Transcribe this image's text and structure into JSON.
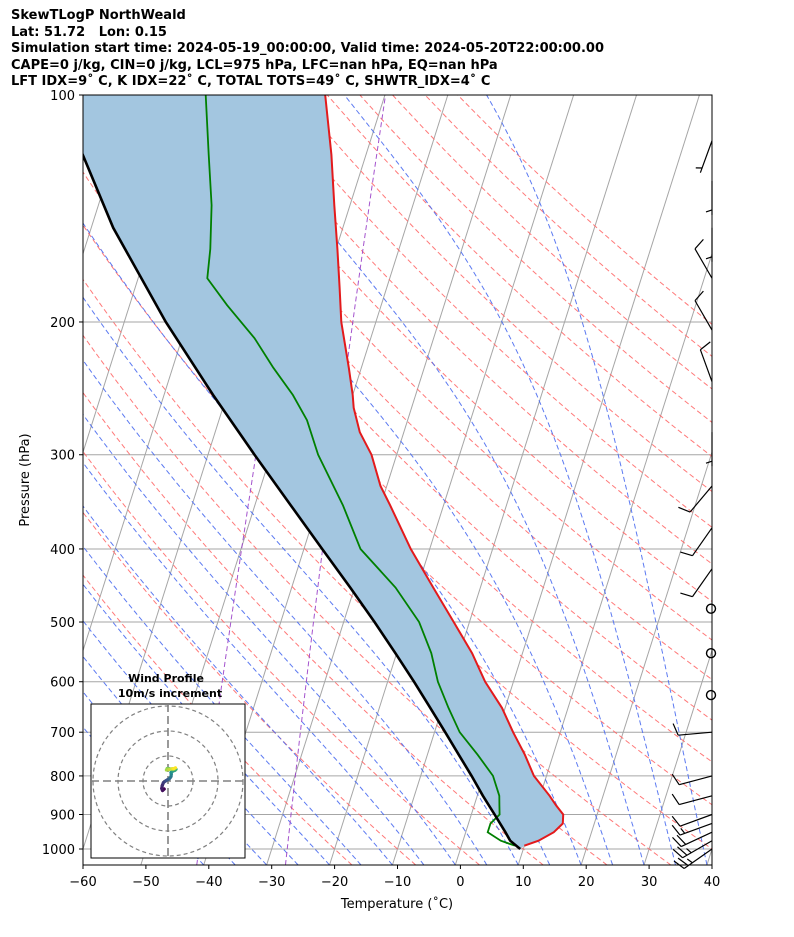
{
  "header": {
    "title": "SkewTLogP NorthWeald",
    "location": "Lat: 51.72   Lon: 0.15",
    "times": "Simulation start time: 2024-05-19_00:00:00, Valid time: 2024-05-20T22:00:00.00",
    "parcel": "CAPE=0 j/kg, CIN=0 j/kg, LCL=975 hPa, LFC=nan hPa, EQ=nan hPa",
    "indices": "LFT IDX=9˚ C, K IDX=22˚ C, TOTAL TOTS=49˚ C, SHWTR_IDX=4˚ C"
  },
  "chart_data": [
    {
      "type": "line",
      "title": "",
      "xlabel": "Temperature (˚C)",
      "ylabel": "Pressure (hPa)",
      "xlim": [
        -60,
        40
      ],
      "ylim": [
        1050,
        100
      ],
      "yscale": "log",
      "grid": true,
      "x_ticks": [
        "−60",
        "−50",
        "−40",
        "−30",
        "−20",
        "−10",
        "0",
        "10",
        "20",
        "30",
        "40"
      ],
      "x_tick_values": [
        -60,
        -50,
        -40,
        -30,
        -20,
        -10,
        0,
        10,
        20,
        30,
        40
      ],
      "y_ticks": [
        "1000",
        "900",
        "800",
        "700",
        "600",
        "500",
        "400",
        "300",
        "200",
        "100"
      ],
      "y_tick_values": [
        1000,
        900,
        800,
        700,
        600,
        500,
        400,
        300,
        200,
        100
      ],
      "skew_deg_per_decade": 38,
      "colors": {
        "temperature": "#e31a1c",
        "dewpoint": "#008000",
        "parcel": "#000000",
        "shade": "#a3c6e0",
        "dry_adiabat": "#ff6a6a",
        "moist_adiabat": "#4a6cf0",
        "mixing_ratio": "#9a40c8",
        "isotherm": "#a6a6a6"
      },
      "series": [
        {
          "id": "temperature",
          "p": [
            990,
            975,
            950,
            925,
            900,
            875,
            850,
            800,
            750,
            700,
            650,
            600,
            550,
            500,
            450,
            400,
            350,
            330,
            300,
            280,
            260,
            250,
            230,
            200,
            180,
            160,
            140,
            120,
            100
          ],
          "t": [
            10.0,
            12.0,
            14.0,
            15.0,
            14.6,
            13.0,
            11.5,
            8.0,
            5.5,
            2.5,
            -0.5,
            -4.5,
            -8.0,
            -12.5,
            -17.5,
            -23.0,
            -28.5,
            -31.0,
            -34.0,
            -37.0,
            -39.2,
            -40.0,
            -42.0,
            -45.5,
            -47.5,
            -49.8,
            -52.5,
            -55.5,
            -59.5
          ]
        },
        {
          "id": "dewpoint",
          "p": [
            990,
            975,
            950,
            925,
            900,
            875,
            850,
            800,
            750,
            700,
            650,
            600,
            550,
            500,
            450,
            400,
            350,
            300,
            270,
            250,
            230,
            210,
            190,
            175,
            160,
            140,
            120,
            100
          ],
          "t": [
            8.5,
            6.0,
            3.5,
            3.5,
            4.5,
            4.0,
            3.5,
            1.5,
            -2.0,
            -6.0,
            -9.0,
            -12.0,
            -14.5,
            -18.0,
            -23.5,
            -31.0,
            -36.0,
            -42.5,
            -46.0,
            -49.5,
            -54.0,
            -58.5,
            -64.5,
            -69.0,
            -70.0,
            -72.0,
            -75.0,
            -78.5
          ]
        },
        {
          "id": "parcel",
          "p": [
            1000,
            975,
            950,
            900,
            850,
            800,
            750,
            700,
            650,
            600,
            550,
            500,
            450,
            400,
            350,
            300,
            250,
            200,
            150,
            100
          ],
          "t": [
            9.5,
            7.5,
            6.3,
            3.7,
            0.9,
            -1.9,
            -5.0,
            -8.3,
            -11.9,
            -15.8,
            -20.2,
            -25.1,
            -30.7,
            -37.1,
            -44.3,
            -52.6,
            -62.2,
            -73.4,
            -86.5,
            -102.0
          ]
        }
      ],
      "wind_barbs": [
        {
          "p": 1000,
          "speed_kt": 25,
          "dir": 235
        },
        {
          "p": 975,
          "speed_kt": 25,
          "dir": 240
        },
        {
          "p": 950,
          "speed_kt": 20,
          "dir": 245
        },
        {
          "p": 925,
          "speed_kt": 15,
          "dir": 250
        },
        {
          "p": 900,
          "speed_kt": 10,
          "dir": 250
        },
        {
          "p": 850,
          "speed_kt": 10,
          "dir": 255
        },
        {
          "p": 800,
          "speed_kt": 10,
          "dir": 255
        },
        {
          "p": 700,
          "speed_kt": 10,
          "dir": 265
        },
        {
          "p": 625,
          "speed_kt": 0,
          "dir": 0
        },
        {
          "p": 550,
          "speed_kt": 0,
          "dir": 0
        },
        {
          "p": 480,
          "speed_kt": 0,
          "dir": 0
        },
        {
          "p": 425,
          "speed_kt": 10,
          "dir": 215
        },
        {
          "p": 375,
          "speed_kt": 10,
          "dir": 215
        },
        {
          "p": 330,
          "speed_kt": 10,
          "dir": 220
        },
        {
          "p": 280,
          "speed_kt": 5,
          "dir": 180
        },
        {
          "p": 240,
          "speed_kt": 10,
          "dir": 340
        },
        {
          "p": 205,
          "speed_kt": 10,
          "dir": 330
        },
        {
          "p": 175,
          "speed_kt": 10,
          "dir": 330
        },
        {
          "p": 150,
          "speed_kt": 5,
          "dir": 180
        },
        {
          "p": 130,
          "speed_kt": 5,
          "dir": 180
        },
        {
          "p": 115,
          "speed_kt": 5,
          "dir": 200
        }
      ]
    },
    {
      "type": "line",
      "title": "Wind Profile",
      "subtitle": "10m/s increment",
      "rings_ms": [
        10,
        20,
        30
      ],
      "colormap": [
        "#440154",
        "#3b528b",
        "#21918c",
        "#5ec962",
        "#fde725"
      ],
      "u": [
        -1.5,
        -2.2,
        -2.5,
        -2.3,
        -1.8,
        -1.0,
        -0.2,
        0.5,
        0.8,
        1.2,
        1.3,
        1.2,
        1.8,
        2.8,
        3.2,
        2.7,
        1.8,
        0.6,
        -0.3,
        -0.6,
        0.4,
        1.6,
        2.3,
        3.0
      ],
      "v": [
        -3.2,
        -3.8,
        -3.0,
        -1.8,
        -0.6,
        0.0,
        0.5,
        0.9,
        1.2,
        1.8,
        2.7,
        3.4,
        3.9,
        4.3,
        4.7,
        5.0,
        4.6,
        4.9,
        5.0,
        4.4,
        4.6,
        4.9,
        4.9,
        5.3
      ]
    }
  ]
}
